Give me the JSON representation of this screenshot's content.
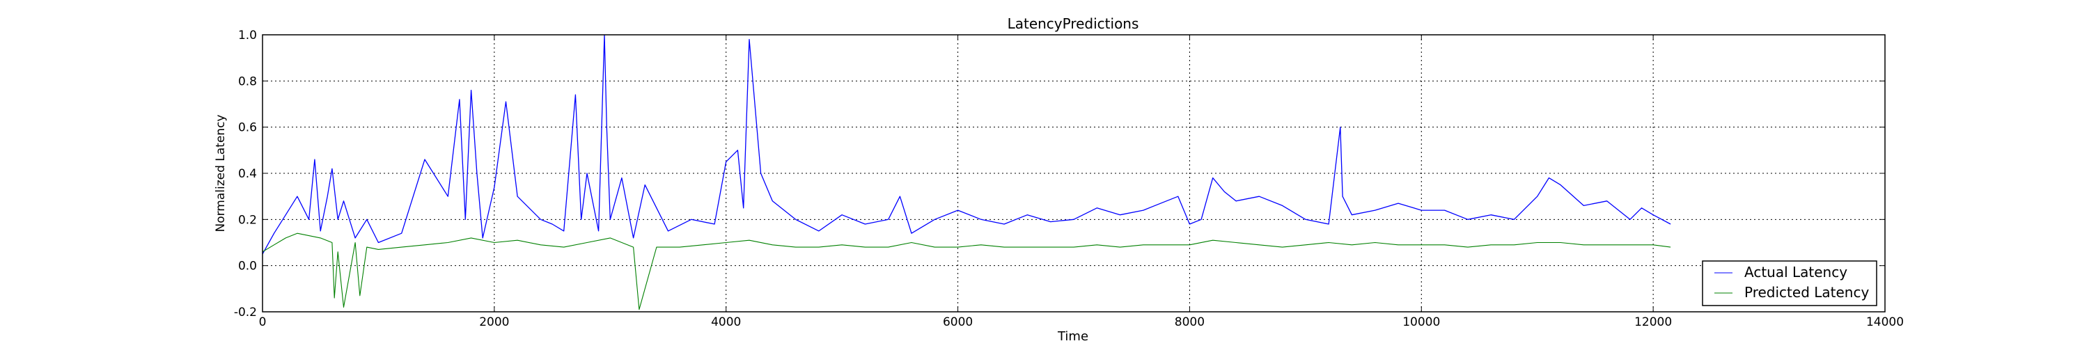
{
  "figure": {
    "title": "LatencyPredictions",
    "xlabel": "Time",
    "ylabel": "Normalized Latency"
  },
  "chart_data": {
    "type": "line",
    "title": "LatencyPredictions",
    "xlabel": "Time",
    "ylabel": "Normalized Latency",
    "xlim": [
      0,
      14000
    ],
    "ylim": [
      -0.2,
      1.0
    ],
    "xticks": [
      "0",
      "2000",
      "4000",
      "6000",
      "8000",
      "10000",
      "12000",
      "14000"
    ],
    "yticks": [
      "-0.2",
      "0.0",
      "0.2",
      "0.4",
      "0.6",
      "0.8",
      "1.0"
    ],
    "grid": true,
    "legend_position": "lower-right",
    "series": [
      {
        "name": "Actual Latency",
        "color": "#0000ff",
        "x": [
          0,
          100,
          200,
          300,
          400,
          450,
          500,
          560,
          600,
          650,
          700,
          800,
          900,
          1000,
          1200,
          1400,
          1600,
          1700,
          1750,
          1800,
          1850,
          1900,
          2000,
          2100,
          2200,
          2300,
          2400,
          2500,
          2600,
          2700,
          2750,
          2800,
          2900,
          2950,
          2970,
          3000,
          3100,
          3200,
          3300,
          3500,
          3700,
          3900,
          4000,
          4100,
          4150,
          4200,
          4300,
          4400,
          4600,
          4800,
          5000,
          5200,
          5400,
          5500,
          5600,
          5800,
          6000,
          6200,
          6400,
          6600,
          6800,
          7000,
          7200,
          7400,
          7600,
          7800,
          7900,
          8000,
          8100,
          8200,
          8300,
          8400,
          8600,
          8800,
          9000,
          9200,
          9300,
          9320,
          9400,
          9600,
          9800,
          10000,
          10200,
          10400,
          10600,
          10800,
          11000,
          11100,
          11200,
          11400,
          11600,
          11800,
          11900,
          12000,
          12150
        ],
        "y": [
          0.05,
          0.14,
          0.22,
          0.3,
          0.2,
          0.46,
          0.15,
          0.3,
          0.42,
          0.2,
          0.28,
          0.12,
          0.2,
          0.1,
          0.14,
          0.46,
          0.3,
          0.72,
          0.2,
          0.76,
          0.4,
          0.12,
          0.34,
          0.71,
          0.3,
          0.25,
          0.2,
          0.18,
          0.15,
          0.74,
          0.2,
          0.4,
          0.15,
          1.0,
          0.6,
          0.2,
          0.38,
          0.12,
          0.35,
          0.15,
          0.2,
          0.18,
          0.45,
          0.5,
          0.25,
          0.98,
          0.4,
          0.28,
          0.2,
          0.15,
          0.22,
          0.18,
          0.2,
          0.3,
          0.14,
          0.2,
          0.24,
          0.2,
          0.18,
          0.22,
          0.19,
          0.2,
          0.25,
          0.22,
          0.24,
          0.28,
          0.3,
          0.18,
          0.2,
          0.38,
          0.32,
          0.28,
          0.3,
          0.26,
          0.2,
          0.18,
          0.6,
          0.3,
          0.22,
          0.24,
          0.27,
          0.24,
          0.24,
          0.2,
          0.22,
          0.2,
          0.3,
          0.38,
          0.35,
          0.26,
          0.28,
          0.2,
          0.25,
          0.22,
          0.18
        ]
      },
      {
        "name": "Predicted Latency",
        "color": "#008000",
        "x": [
          0,
          100,
          200,
          300,
          400,
          500,
          600,
          620,
          650,
          700,
          800,
          840,
          900,
          1000,
          1200,
          1400,
          1600,
          1800,
          2000,
          2200,
          2400,
          2600,
          2800,
          3000,
          3200,
          3250,
          3400,
          3600,
          3800,
          4000,
          4200,
          4400,
          4600,
          4800,
          5000,
          5200,
          5400,
          5600,
          5800,
          6000,
          6200,
          6400,
          6600,
          6800,
          7000,
          7200,
          7400,
          7600,
          7800,
          8000,
          8200,
          8400,
          8600,
          8800,
          9000,
          9200,
          9400,
          9600,
          9800,
          10000,
          10200,
          10400,
          10600,
          10800,
          11000,
          11200,
          11400,
          11600,
          11800,
          12000,
          12150
        ],
        "y": [
          0.06,
          0.09,
          0.12,
          0.14,
          0.13,
          0.12,
          0.1,
          -0.14,
          0.06,
          -0.18,
          0.1,
          -0.13,
          0.08,
          0.07,
          0.08,
          0.09,
          0.1,
          0.12,
          0.1,
          0.11,
          0.09,
          0.08,
          0.1,
          0.12,
          0.08,
          -0.19,
          0.08,
          0.08,
          0.09,
          0.1,
          0.11,
          0.09,
          0.08,
          0.08,
          0.09,
          0.08,
          0.08,
          0.1,
          0.08,
          0.08,
          0.09,
          0.08,
          0.08,
          0.08,
          0.08,
          0.09,
          0.08,
          0.09,
          0.09,
          0.09,
          0.11,
          0.1,
          0.09,
          0.08,
          0.09,
          0.1,
          0.09,
          0.1,
          0.09,
          0.09,
          0.09,
          0.08,
          0.09,
          0.09,
          0.1,
          0.1,
          0.09,
          0.09,
          0.09,
          0.09,
          0.08
        ]
      }
    ]
  }
}
